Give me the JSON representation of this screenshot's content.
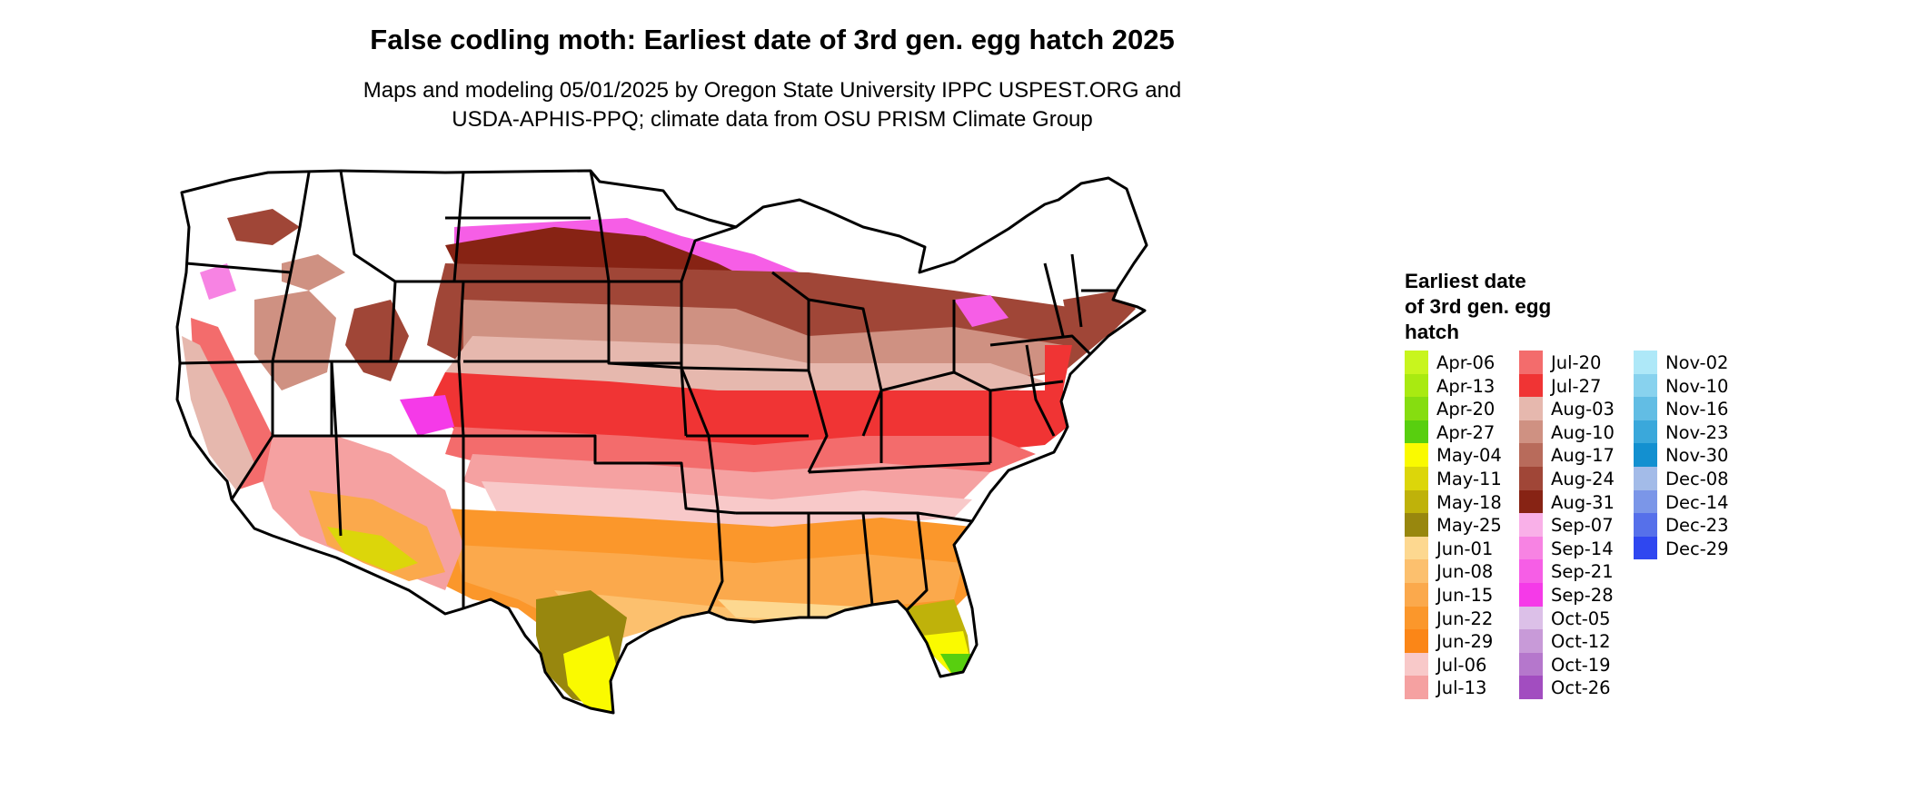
{
  "title": "False codling moth: Earliest date of 3rd gen. egg hatch 2025",
  "subtitle_line1": "Maps and modeling 05/01/2025 by Oregon State University IPPC USPEST.ORG and",
  "subtitle_line2": "USDA-APHIS-PPQ; climate data from OSU PRISM Climate Group",
  "legend": {
    "title_line1": "Earliest date",
    "title_line2": "of 3rd gen. egg",
    "title_line3": "hatch",
    "items": [
      {
        "label": "Apr-06",
        "color": "#c8f51e"
      },
      {
        "label": "Apr-13",
        "color": "#a9ea11"
      },
      {
        "label": "Apr-20",
        "color": "#86dd10"
      },
      {
        "label": "Apr-27",
        "color": "#58cf0f"
      },
      {
        "label": "May-04",
        "color": "#fafa00"
      },
      {
        "label": "May-11",
        "color": "#dcd60a"
      },
      {
        "label": "May-18",
        "color": "#bfb20a"
      },
      {
        "label": "May-25",
        "color": "#98870e"
      },
      {
        "label": "Jun-01",
        "color": "#fdd890"
      },
      {
        "label": "Jun-08",
        "color": "#fcc06e"
      },
      {
        "label": "Jun-15",
        "color": "#fba94c"
      },
      {
        "label": "Jun-22",
        "color": "#fb972b"
      },
      {
        "label": "Jun-29",
        "color": "#fb8617"
      },
      {
        "label": "Jul-06",
        "color": "#f8c9c9"
      },
      {
        "label": "Jul-13",
        "color": "#f5a1a1"
      },
      {
        "label": "Jul-20",
        "color": "#f36c6c"
      },
      {
        "label": "Jul-27",
        "color": "#f03434"
      },
      {
        "label": "Aug-03",
        "color": "#e6b8ae"
      },
      {
        "label": "Aug-10",
        "color": "#cf9182"
      },
      {
        "label": "Aug-17",
        "color": "#b86b5b"
      },
      {
        "label": "Aug-24",
        "color": "#a04637"
      },
      {
        "label": "Aug-31",
        "color": "#872314"
      },
      {
        "label": "Sep-07",
        "color": "#f9b0e8"
      },
      {
        "label": "Sep-14",
        "color": "#f783e3"
      },
      {
        "label": "Sep-21",
        "color": "#f65ee6"
      },
      {
        "label": "Sep-28",
        "color": "#f53ae8"
      },
      {
        "label": "Oct-05",
        "color": "#dcc0e8"
      },
      {
        "label": "Oct-12",
        "color": "#c89ad8"
      },
      {
        "label": "Oct-19",
        "color": "#b577cc"
      },
      {
        "label": "Oct-26",
        "color": "#a24dc0"
      },
      {
        "label": "Nov-02",
        "color": "#aee8f8"
      },
      {
        "label": "Nov-10",
        "color": "#88d2ee"
      },
      {
        "label": "Nov-16",
        "color": "#62bde4"
      },
      {
        "label": "Nov-23",
        "color": "#3aa8db"
      },
      {
        "label": "Nov-30",
        "color": "#1390d0"
      },
      {
        "label": "Dec-08",
        "color": "#a3bbe8"
      },
      {
        "label": "Dec-14",
        "color": "#7b96e8"
      },
      {
        "label": "Dec-23",
        "color": "#5670ea"
      },
      {
        "label": "Dec-29",
        "color": "#2f47f0"
      }
    ]
  }
}
